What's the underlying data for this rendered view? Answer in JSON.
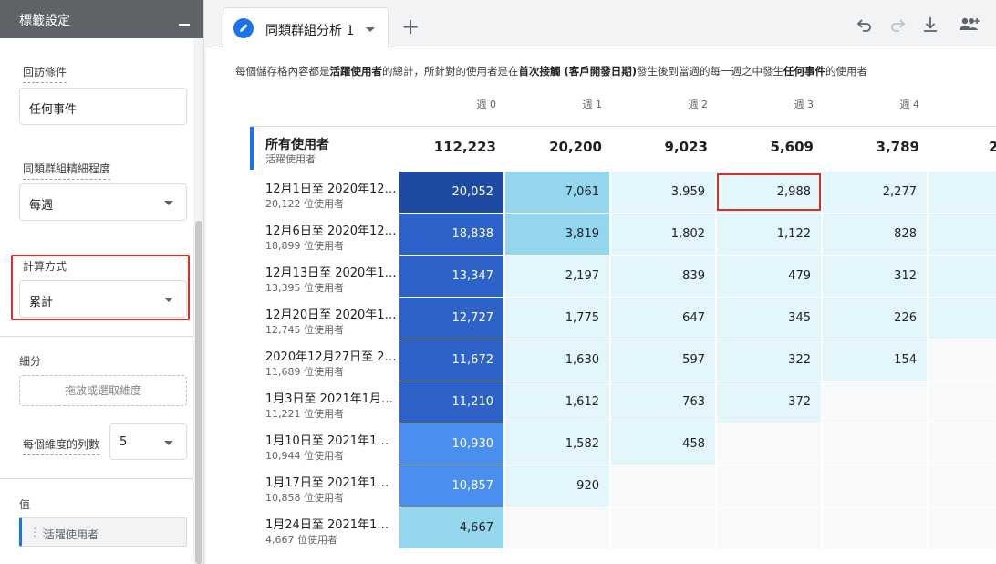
{
  "panel": {
    "title": "標籤設定",
    "return_criteria": {
      "label": "回訪條件",
      "value": "任何事件"
    },
    "granularity": {
      "label": "同類群組精細程度",
      "value": "每週"
    },
    "calculation": {
      "label": "計算方式",
      "value": "累計"
    },
    "breakdown": {
      "label": "細分",
      "drop_placeholder": "拖放或選取維度"
    },
    "rows_per_dimension": {
      "label": "每個維度的列數",
      "value": "5"
    },
    "values": {
      "label": "值",
      "chip": "活躍使用者"
    }
  },
  "tab": {
    "label": "同類群組分析 1"
  },
  "toolbar": {
    "icons": [
      "undo-icon",
      "redo-icon",
      "download-icon",
      "share-icon"
    ]
  },
  "description": {
    "p1": "每個儲存格內容都是",
    "b1": "活躍使用者",
    "p2": "的總計，所針對的使用者是在",
    "b2": "首次接觸 (客戶開發日期)",
    "p3": "發生後到當週的每一週之中發生",
    "b3": "任何事件",
    "p4": "的使用者"
  },
  "weeks": [
    "週 0",
    "週 1",
    "週 2",
    "週 3",
    "週 4"
  ],
  "total": {
    "title": "所有使用者",
    "subtitle": "活躍使用者",
    "values": [
      "112,223",
      "20,200",
      "9,023",
      "5,609",
      "3,789"
    ],
    "cut_value": "2"
  },
  "rows": [
    {
      "label": "12月1日至 2020年12…",
      "sub": "20,122 位使用者",
      "values": [
        "20,052",
        "7,061",
        "3,959",
        "2,988",
        "2,277"
      ]
    },
    {
      "label": "12月6日至 2020年12…",
      "sub": "18,899 位使用者",
      "values": [
        "18,838",
        "3,819",
        "1,802",
        "1,122",
        "828"
      ]
    },
    {
      "label": "12月13日至 2020年1…",
      "sub": "13,395 位使用者",
      "values": [
        "13,347",
        "2,197",
        "839",
        "479",
        "312"
      ]
    },
    {
      "label": "12月20日至 2020年1…",
      "sub": "12,745 位使用者",
      "values": [
        "12,727",
        "1,775",
        "647",
        "345",
        "226"
      ]
    },
    {
      "label": "2020年12月27日至 2…",
      "sub": "11,689 位使用者",
      "values": [
        "11,672",
        "1,630",
        "597",
        "322",
        "154"
      ]
    },
    {
      "label": "1月3日至 2021年1月…",
      "sub": "11,221 位使用者",
      "values": [
        "11,210",
        "1,612",
        "763",
        "372"
      ]
    },
    {
      "label": "1月10日至 2021年1…",
      "sub": "10,944 位使用者",
      "values": [
        "10,930",
        "1,582",
        "458"
      ]
    },
    {
      "label": "1月17日至 2021年1…",
      "sub": "10,858 位使用者",
      "values": [
        "10,857",
        "920"
      ]
    },
    {
      "label": "1月24日至 2021年1…",
      "sub": "4,667 位使用者",
      "values": [
        "4,667"
      ]
    }
  ],
  "colors": {
    "accent": "#1a73e8",
    "highlight": "#d93025",
    "cell_dark": "#1e4aa3",
    "cell_mid": "#2d62c8",
    "cell_bright": "#4a8ef0",
    "cell_light": "#93d6ee",
    "cell_pale": "#e3f6fb"
  }
}
